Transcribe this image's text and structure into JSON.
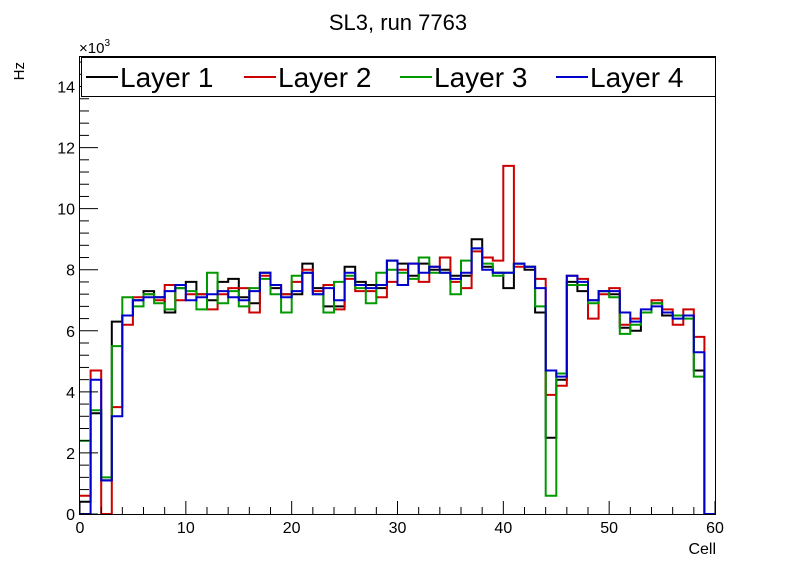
{
  "chart_data": {
    "type": "step",
    "title": "SL3, run 7763",
    "xlabel": "Cell",
    "ylabel": "Hz",
    "y_multiplier": "×10",
    "y_multiplier_exp": "3",
    "xlim": [
      0,
      60
    ],
    "ylim": [
      0,
      15
    ],
    "x_ticks": [
      0,
      10,
      20,
      30,
      40,
      50,
      60
    ],
    "x_tick_labels": [
      "0",
      "10",
      "20",
      "30",
      "40",
      "50",
      "60"
    ],
    "y_ticks": [
      0,
      2,
      4,
      6,
      8,
      10,
      12,
      14
    ],
    "y_tick_labels": [
      "0",
      "2",
      "4",
      "6",
      "8",
      "10",
      "12",
      "14"
    ],
    "legend_position": "top",
    "series": [
      {
        "name": "Layer 1",
        "color": "#000000",
        "values": [
          0.4,
          3.3,
          1.1,
          6.3,
          6.5,
          7.0,
          7.3,
          7.1,
          6.6,
          7.4,
          7.6,
          7.2,
          7.0,
          7.6,
          7.7,
          7.1,
          6.9,
          7.9,
          7.4,
          7.2,
          7.2,
          8.2,
          7.4,
          6.8,
          6.8,
          8.1,
          7.6,
          7.5,
          7.4,
          8.3,
          8.2,
          7.8,
          8.2,
          8.0,
          8.0,
          7.8,
          7.8,
          9.0,
          8.1,
          7.9,
          7.4,
          8.2,
          8.0,
          6.6,
          2.5,
          4.4,
          7.6,
          7.3,
          7.0,
          7.3,
          7.2,
          6.1,
          6.0,
          6.6,
          6.9,
          6.5,
          6.5,
          6.5,
          4.7,
          0.0
        ]
      },
      {
        "name": "Layer 2",
        "color": "#cc0000",
        "values": [
          0.6,
          4.7,
          0.0,
          3.5,
          6.2,
          7.1,
          7.2,
          7.0,
          7.5,
          7.0,
          7.2,
          7.2,
          6.7,
          7.2,
          7.4,
          7.4,
          6.6,
          7.8,
          7.5,
          7.2,
          7.6,
          8.0,
          7.3,
          7.5,
          6.7,
          7.7,
          7.3,
          7.3,
          7.1,
          7.6,
          8.0,
          8.2,
          7.6,
          8.1,
          8.4,
          7.6,
          7.4,
          8.6,
          8.4,
          8.3,
          11.4,
          8.1,
          8.1,
          7.7,
          3.9,
          4.2,
          7.8,
          7.7,
          6.4,
          7.2,
          7.4,
          6.2,
          6.4,
          6.6,
          7.0,
          6.7,
          6.2,
          6.7,
          5.8,
          0.0
        ]
      },
      {
        "name": "Layer 3",
        "color": "#009900",
        "values": [
          2.4,
          3.4,
          1.2,
          5.5,
          7.1,
          6.8,
          7.2,
          6.9,
          6.7,
          7.4,
          7.3,
          6.7,
          7.9,
          6.9,
          7.3,
          6.8,
          7.4,
          7.7,
          7.2,
          6.6,
          7.8,
          7.9,
          7.2,
          6.6,
          7.6,
          7.8,
          7.4,
          6.9,
          7.9,
          8.0,
          7.9,
          7.7,
          8.4,
          7.9,
          7.9,
          7.2,
          8.3,
          8.7,
          8.2,
          7.8,
          7.9,
          8.2,
          8.1,
          6.8,
          0.6,
          4.6,
          7.5,
          7.5,
          6.9,
          7.3,
          7.1,
          5.9,
          6.2,
          6.6,
          6.9,
          6.6,
          6.5,
          6.4,
          4.5,
          0.0
        ]
      },
      {
        "name": "Layer 4",
        "color": "#0000cc",
        "values": [
          0.0,
          4.4,
          1.1,
          3.2,
          6.5,
          7.0,
          7.1,
          7.1,
          7.3,
          7.5,
          7.0,
          7.1,
          7.2,
          7.3,
          7.1,
          7.0,
          7.3,
          7.9,
          7.5,
          7.1,
          7.3,
          7.9,
          7.2,
          7.4,
          7.0,
          7.9,
          7.5,
          7.4,
          7.5,
          8.3,
          7.5,
          8.2,
          7.9,
          8.1,
          7.9,
          7.7,
          7.9,
          8.7,
          8.0,
          7.9,
          7.9,
          8.2,
          8.1,
          7.4,
          4.7,
          4.5,
          7.8,
          7.6,
          7.0,
          7.3,
          7.3,
          6.6,
          6.3,
          6.7,
          6.8,
          6.6,
          6.4,
          6.5,
          5.3,
          0.0
        ]
      }
    ]
  }
}
